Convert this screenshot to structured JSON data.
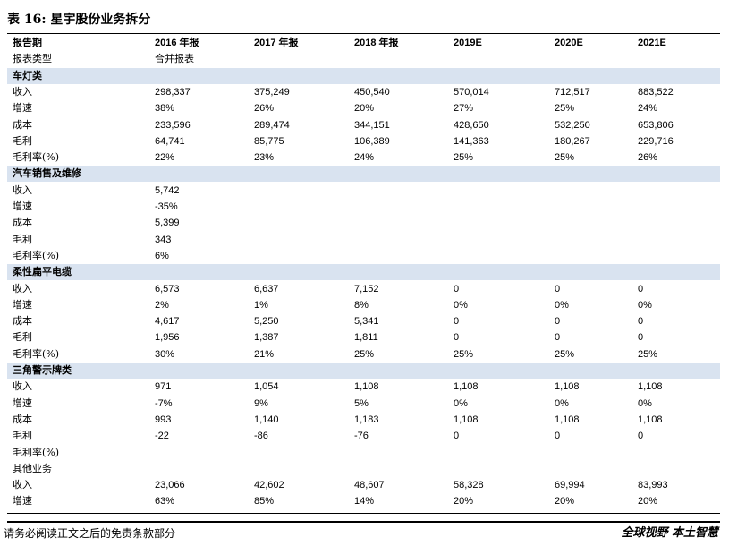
{
  "header": {
    "title": "表 16:  星宇股份业务拆分"
  },
  "table": {
    "columns": [
      "报告期",
      "2016 年报",
      "2017 年报",
      "2018 年报",
      "2019E",
      "2020E",
      "2021E"
    ],
    "rows": [
      {
        "cells": [
          "报表类型",
          "合并报表"
        ]
      },
      {
        "section": "车灯类"
      },
      {
        "cells": [
          "收入",
          "298,337",
          "375,249",
          "450,540",
          "570,014",
          "712,517",
          "883,522"
        ]
      },
      {
        "cells": [
          "增速",
          "38%",
          "26%",
          "20%",
          "27%",
          "25%",
          "24%"
        ]
      },
      {
        "cells": [
          "成本",
          "233,596",
          "289,474",
          "344,151",
          "428,650",
          "532,250",
          "653,806"
        ]
      },
      {
        "cells": [
          "毛利",
          "64,741",
          "85,775",
          "106,389",
          "141,363",
          "180,267",
          "229,716"
        ]
      },
      {
        "cells": [
          "毛利率(%)",
          "22%",
          "23%",
          "24%",
          "25%",
          "25%",
          "26%"
        ]
      },
      {
        "section": "汽车销售及维修"
      },
      {
        "cells": [
          "收入",
          "5,742"
        ]
      },
      {
        "cells": [
          "增速",
          "-35%"
        ]
      },
      {
        "cells": [
          "成本",
          "5,399"
        ]
      },
      {
        "cells": [
          "毛利",
          "343"
        ]
      },
      {
        "cells": [
          "毛利率(%)",
          "6%"
        ]
      },
      {
        "section": "柔性扁平电缆"
      },
      {
        "cells": [
          "收入",
          "6,573",
          "6,637",
          "7,152",
          "0",
          "0",
          "0"
        ]
      },
      {
        "cells": [
          "增速",
          "2%",
          "1%",
          "8%",
          "0%",
          "0%",
          "0%"
        ]
      },
      {
        "cells": [
          "成本",
          "4,617",
          "5,250",
          "5,341",
          "0",
          "0",
          "0"
        ]
      },
      {
        "cells": [
          "毛利",
          "1,956",
          "1,387",
          "1,811",
          "0",
          "0",
          "0"
        ]
      },
      {
        "cells": [
          "毛利率(%)",
          "30%",
          "21%",
          "25%",
          "25%",
          "25%",
          "25%"
        ]
      },
      {
        "section": "三角警示牌类"
      },
      {
        "cells": [
          "收入",
          "971",
          "1,054",
          "1,108",
          "1,108",
          "1,108",
          "1,108"
        ]
      },
      {
        "cells": [
          "增速",
          "-7%",
          "9%",
          "5%",
          "0%",
          "0%",
          "0%"
        ]
      },
      {
        "cells": [
          "成本",
          "993",
          "1,140",
          "1,183",
          "1,108",
          "1,108",
          "1,108"
        ]
      },
      {
        "cells": [
          "毛利",
          "-22",
          "-86",
          "-76",
          "0",
          "0",
          "0"
        ]
      },
      {
        "cells": [
          "毛利率(%)"
        ]
      },
      {
        "cells": [
          "其他业务"
        ]
      },
      {
        "cells": [
          "收入",
          "23,066",
          "42,602",
          "48,607",
          "58,328",
          "69,994",
          "83,993"
        ]
      },
      {
        "cells": [
          "增速",
          "63%",
          "85%",
          "14%",
          "20%",
          "20%",
          "20%"
        ]
      }
    ]
  },
  "footer": {
    "disclaimer": "请务必阅读正文之后的免责条款部分",
    "slogan": "全球视野   本土智慧"
  }
}
